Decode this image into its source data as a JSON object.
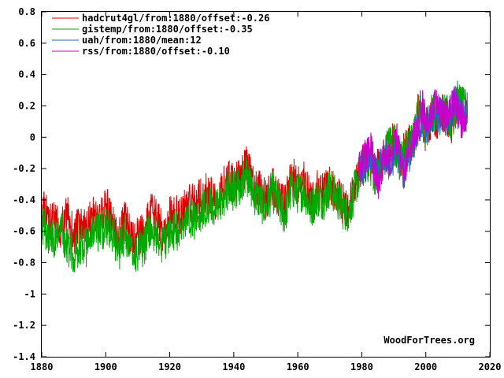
{
  "watermark": "WoodForTrees.org",
  "chart_data": {
    "type": "line",
    "title": "",
    "xlabel": "",
    "ylabel": "",
    "xlim": [
      1880,
      2020
    ],
    "ylim": [
      -1.4,
      0.8
    ],
    "grid": false,
    "legend_position": "top-left",
    "x_ticks": [
      {
        "value": 1880,
        "label": "1880"
      },
      {
        "value": 1900,
        "label": "1900"
      },
      {
        "value": 1920,
        "label": "1920"
      },
      {
        "value": 1940,
        "label": "1940"
      },
      {
        "value": 1960,
        "label": "1960"
      },
      {
        "value": 1980,
        "label": "1980"
      },
      {
        "value": 2000,
        "label": "2000"
      },
      {
        "value": 2020,
        "label": "2020"
      }
    ],
    "y_ticks": [
      {
        "value": 0.8,
        "label": "0.8"
      },
      {
        "value": 0.6,
        "label": "0.6"
      },
      {
        "value": 0.4,
        "label": "0.4"
      },
      {
        "value": 0.2,
        "label": "0.2"
      },
      {
        "value": 0,
        "label": "0"
      },
      {
        "value": -0.2,
        "label": "-0.2"
      },
      {
        "value": -0.4,
        "label": "-0.4"
      },
      {
        "value": -0.6,
        "label": "-0.6"
      },
      {
        "value": -0.8,
        "label": "-0.8"
      },
      {
        "value": -1,
        "label": "-1"
      },
      {
        "value": -1.2,
        "label": "-1.2"
      },
      {
        "value": -1.4,
        "label": "-1.4"
      }
    ],
    "series": [
      {
        "name": "hadcrut4gl/from:1880/offset:-0.26",
        "color": "#dd0000",
        "x": [
          1880,
          1882,
          1884,
          1886,
          1888,
          1890,
          1892,
          1894,
          1896,
          1898,
          1900,
          1902,
          1904,
          1906,
          1908,
          1910,
          1912,
          1914,
          1916,
          1918,
          1920,
          1922,
          1924,
          1926,
          1928,
          1930,
          1932,
          1934,
          1936,
          1938,
          1940,
          1942,
          1944,
          1946,
          1948,
          1950,
          1952,
          1954,
          1956,
          1958,
          1960,
          1962,
          1964,
          1966,
          1968,
          1970,
          1972,
          1974,
          1976,
          1978,
          1980,
          1982,
          1984,
          1986,
          1988,
          1990,
          1992,
          1994,
          1996,
          1998,
          2000,
          2002,
          2004,
          2006,
          2008,
          2010,
          2012,
          2013
        ],
        "y": [
          -0.46,
          -0.5,
          -0.55,
          -0.58,
          -0.5,
          -0.62,
          -0.56,
          -0.6,
          -0.48,
          -0.55,
          -0.42,
          -0.55,
          -0.65,
          -0.52,
          -0.66,
          -0.64,
          -0.6,
          -0.46,
          -0.52,
          -0.62,
          -0.5,
          -0.5,
          -0.48,
          -0.4,
          -0.44,
          -0.36,
          -0.36,
          -0.4,
          -0.36,
          -0.26,
          -0.3,
          -0.24,
          -0.18,
          -0.3,
          -0.34,
          -0.4,
          -0.3,
          -0.38,
          -0.44,
          -0.24,
          -0.3,
          -0.28,
          -0.4,
          -0.34,
          -0.36,
          -0.3,
          -0.36,
          -0.42,
          -0.46,
          -0.28,
          -0.18,
          -0.14,
          -0.22,
          -0.18,
          -0.08,
          -0.02,
          -0.16,
          -0.06,
          -0.02,
          0.22,
          0.02,
          0.14,
          0.1,
          0.16,
          0.08,
          0.22,
          0.16,
          0.18
        ]
      },
      {
        "name": "gistemp/from:1880/offset:-0.35",
        "color": "#00aa00",
        "x": [
          1880,
          1882,
          1884,
          1886,
          1888,
          1890,
          1892,
          1894,
          1896,
          1898,
          1900,
          1902,
          1904,
          1906,
          1908,
          1910,
          1912,
          1914,
          1916,
          1918,
          1920,
          1922,
          1924,
          1926,
          1928,
          1930,
          1932,
          1934,
          1936,
          1938,
          1940,
          1942,
          1944,
          1946,
          1948,
          1950,
          1952,
          1954,
          1956,
          1958,
          1960,
          1962,
          1964,
          1966,
          1968,
          1970,
          1972,
          1974,
          1976,
          1978,
          1980,
          1982,
          1984,
          1986,
          1988,
          1990,
          1992,
          1994,
          1996,
          1998,
          2000,
          2002,
          2004,
          2006,
          2008,
          2010,
          2012,
          2013
        ],
        "y": [
          -0.55,
          -0.62,
          -0.66,
          -0.6,
          -0.7,
          -0.74,
          -0.68,
          -0.7,
          -0.58,
          -0.62,
          -0.56,
          -0.6,
          -0.74,
          -0.62,
          -0.76,
          -0.72,
          -0.7,
          -0.56,
          -0.64,
          -0.68,
          -0.6,
          -0.6,
          -0.58,
          -0.5,
          -0.54,
          -0.46,
          -0.44,
          -0.46,
          -0.42,
          -0.34,
          -0.34,
          -0.3,
          -0.24,
          -0.36,
          -0.4,
          -0.46,
          -0.34,
          -0.44,
          -0.5,
          -0.32,
          -0.36,
          -0.34,
          -0.46,
          -0.38,
          -0.4,
          -0.32,
          -0.38,
          -0.46,
          -0.48,
          -0.32,
          -0.2,
          -0.16,
          -0.24,
          -0.2,
          -0.06,
          -0.02,
          -0.18,
          -0.06,
          -0.04,
          0.2,
          0.04,
          0.18,
          0.12,
          0.2,
          0.1,
          0.24,
          0.18,
          0.2
        ]
      },
      {
        "name": "uah/from:1880/mean:12",
        "color": "#2266cc",
        "x": [
          1979,
          1981,
          1983,
          1985,
          1987,
          1989,
          1991,
          1993,
          1995,
          1997,
          1999,
          2001,
          2003,
          2005,
          2007,
          2009,
          2011,
          2013
        ],
        "y": [
          -0.22,
          -0.18,
          -0.1,
          -0.24,
          -0.12,
          -0.16,
          -0.06,
          -0.22,
          -0.1,
          0.02,
          0.1,
          0.06,
          0.16,
          0.14,
          0.12,
          0.22,
          0.12,
          0.18
        ]
      },
      {
        "name": "rss/from:1880/offset:-0.10",
        "color": "#cc00cc",
        "x": [
          1979,
          1981,
          1983,
          1985,
          1987,
          1989,
          1991,
          1993,
          1995,
          1997,
          1999,
          2001,
          2003,
          2005,
          2007,
          2009,
          2011,
          2013
        ],
        "y": [
          -0.2,
          -0.12,
          -0.08,
          -0.3,
          -0.1,
          -0.14,
          -0.02,
          -0.24,
          -0.06,
          0.04,
          0.18,
          0.08,
          0.2,
          0.16,
          0.12,
          0.24,
          0.1,
          0.14
        ]
      }
    ]
  }
}
